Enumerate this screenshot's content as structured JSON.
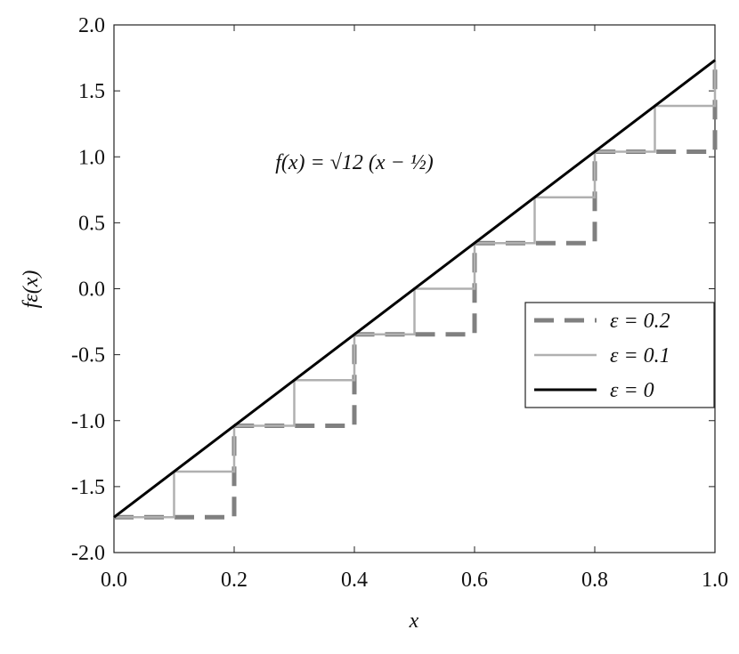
{
  "chart_data": {
    "type": "line",
    "annotation": "f(x) = √12 (x − ½)",
    "x_label": "x",
    "y_label": "fε(x)",
    "xlim": [
      0,
      1
    ],
    "ylim": [
      -2,
      2
    ],
    "xticks": [
      {
        "value": 0,
        "label": "0.0"
      },
      0.2,
      0.4,
      0.6,
      0.8,
      {
        "value": 1,
        "label": "1.0"
      }
    ],
    "yticks": [
      {
        "value": -2,
        "label": "-2.0"
      },
      -1.5,
      {
        "value": -1,
        "label": "-1.0"
      },
      -0.5,
      {
        "value": 0,
        "label": "0.0"
      },
      0.5,
      {
        "value": 1,
        "label": "1.0"
      },
      1.5,
      {
        "value": 2,
        "label": "2.0"
      }
    ],
    "legend": "right",
    "series": [
      {
        "name": "ε = 0.2",
        "color": "#808080",
        "dash": true,
        "x": [
          0,
          0.2,
          0.2,
          0.4,
          0.4,
          0.6,
          0.6,
          0.8,
          0.8,
          1,
          1
        ],
        "values": [
          -1.732,
          -1.732,
          -1.039,
          -1.039,
          -0.346,
          -0.346,
          0.346,
          0.346,
          1.039,
          1.039,
          1.732
        ]
      },
      {
        "name": "ε = 0.1",
        "color": "#b0b0b0",
        "dash": false,
        "x": [
          0,
          0.1,
          0.1,
          0.2,
          0.2,
          0.3,
          0.3,
          0.4,
          0.4,
          0.5,
          0.5,
          0.6,
          0.6,
          0.7,
          0.7,
          0.8,
          0.8,
          0.9,
          0.9,
          1,
          1
        ],
        "values": [
          -1.732,
          -1.732,
          -1.386,
          -1.386,
          -1.039,
          -1.039,
          -0.693,
          -0.693,
          -0.346,
          -0.346,
          0,
          0,
          0.346,
          0.346,
          0.693,
          0.693,
          1.039,
          1.039,
          1.386,
          1.386,
          1.732
        ]
      },
      {
        "name": "ε = 0",
        "color": "#000000",
        "dash": false,
        "x": [
          0,
          1
        ],
        "values": [
          -1.732,
          1.732
        ]
      }
    ]
  }
}
